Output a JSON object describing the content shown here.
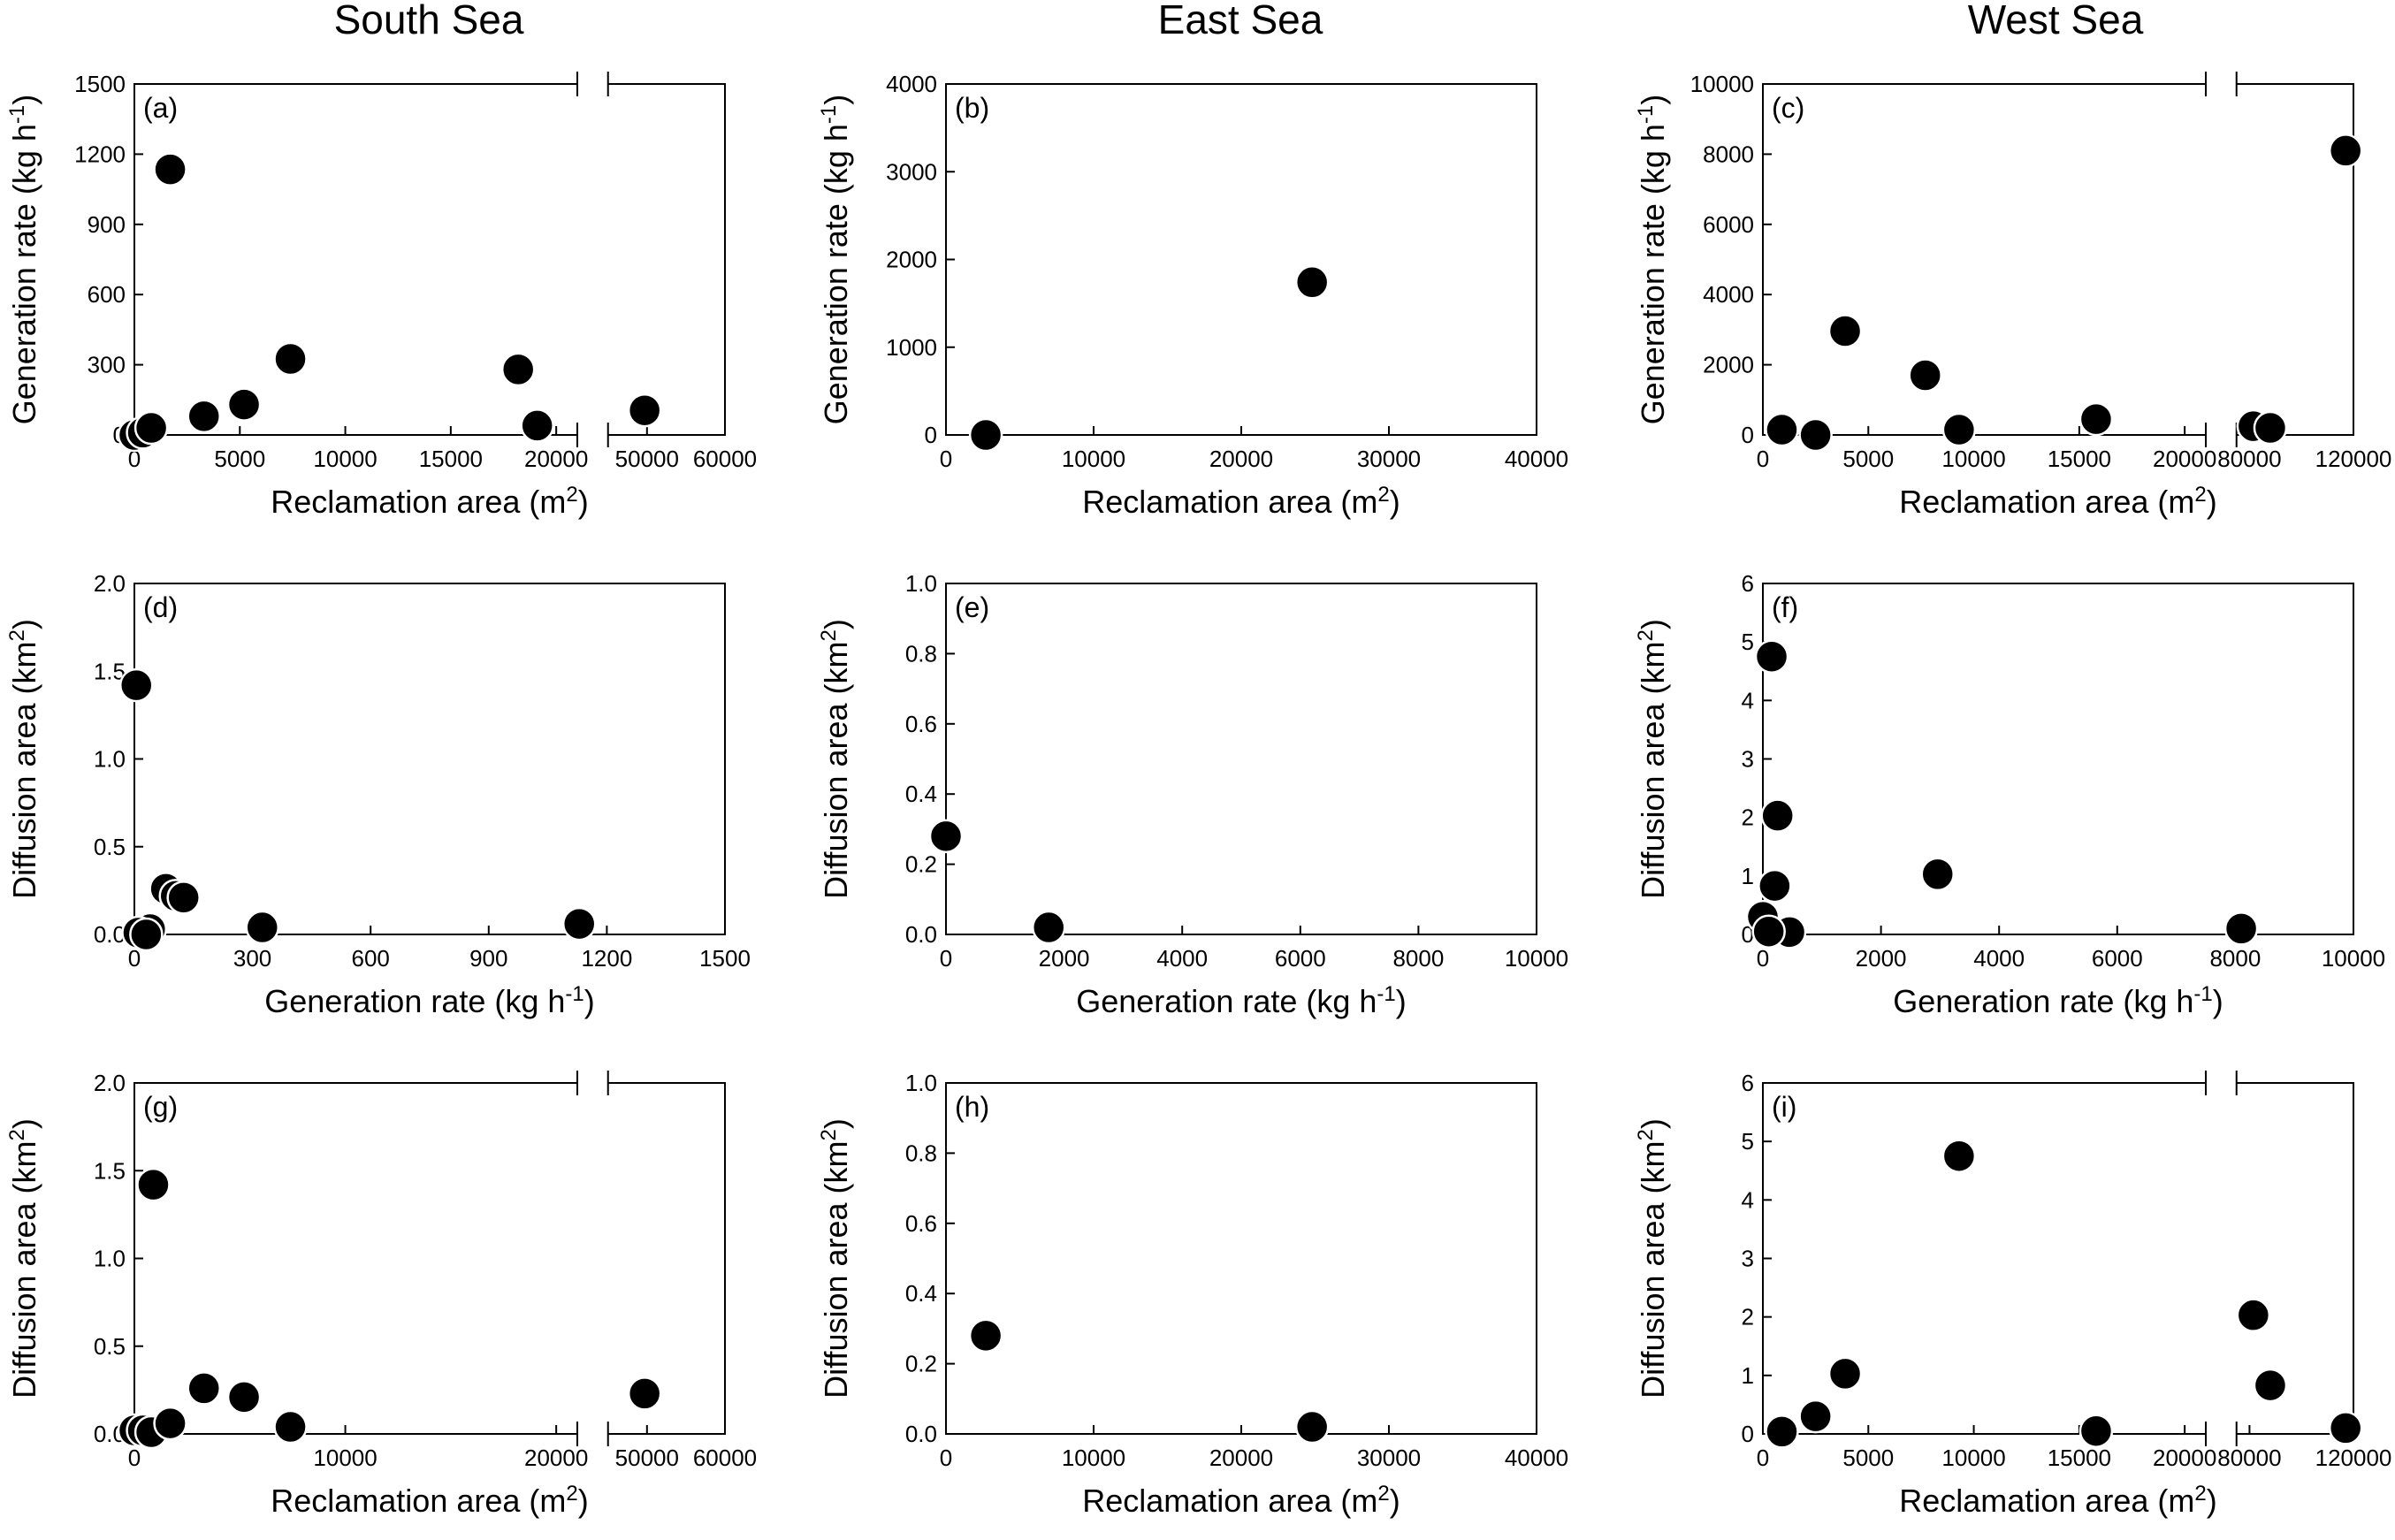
{
  "column_titles": [
    "South Sea",
    "East Sea",
    "West Sea"
  ],
  "chart_data": [
    {
      "panel": "(a)",
      "type": "scatter",
      "xlabel": "Reclamation area (m2)",
      "ylabel": "Generation rate (kg h-1)",
      "xaxis": {
        "broken": true,
        "segments": [
          {
            "range": [
              0,
              21000
            ],
            "ticks": [
              0,
              5000,
              10000,
              15000,
              20000
            ]
          },
          {
            "range": [
              45000,
              60000
            ],
            "ticks": [
              50000,
              60000
            ]
          }
        ]
      },
      "ylim": [
        0,
        1500
      ],
      "yticks": [
        0,
        300,
        600,
        900,
        1200,
        1500
      ],
      "points": [
        [
          0,
          0
        ],
        [
          400,
          10
        ],
        [
          800,
          30
        ],
        [
          1700,
          1135
        ],
        [
          3300,
          80
        ],
        [
          5200,
          130
        ],
        [
          7400,
          325
        ],
        [
          18200,
          280
        ],
        [
          19100,
          40
        ],
        [
          49700,
          105
        ]
      ]
    },
    {
      "panel": "(b)",
      "type": "scatter",
      "xlabel": "Reclamation area (m2)",
      "ylabel": "Generation rate (kg h-1)",
      "xaxis": {
        "broken": false,
        "segments": [
          {
            "range": [
              0,
              40000
            ],
            "ticks": [
              0,
              10000,
              20000,
              30000,
              40000
            ]
          }
        ]
      },
      "ylim": [
        0,
        4000
      ],
      "yticks": [
        0,
        1000,
        2000,
        3000,
        4000
      ],
      "points": [
        [
          2700,
          0
        ],
        [
          24800,
          1740
        ]
      ]
    },
    {
      "panel": "(c)",
      "type": "scatter",
      "xlabel": "Reclamation area (m2)",
      "ylabel": "Generation rate (kg h-1)",
      "xaxis": {
        "broken": true,
        "segments": [
          {
            "range": [
              0,
              21000
            ],
            "ticks": [
              0,
              5000,
              10000,
              15000,
              20000
            ]
          },
          {
            "range": [
              75000,
              120000
            ],
            "ticks": [
              80000,
              120000
            ]
          }
        ]
      },
      "ylim": [
        0,
        10000
      ],
      "yticks": [
        0,
        2000,
        4000,
        6000,
        8000,
        10000
      ],
      "points": [
        [
          900,
          150
        ],
        [
          2500,
          0
        ],
        [
          3900,
          2960
        ],
        [
          7700,
          1700
        ],
        [
          9300,
          150
        ],
        [
          15800,
          450
        ],
        [
          81500,
          250
        ],
        [
          88000,
          200
        ],
        [
          117000,
          8100
        ]
      ]
    },
    {
      "panel": "(d)",
      "type": "scatter",
      "xlabel": "Generation rate (kg h-1)",
      "ylabel": "Diffusion area (km2)",
      "xaxis": {
        "broken": false,
        "segments": [
          {
            "range": [
              0,
              1500
            ],
            "ticks": [
              0,
              300,
              600,
              900,
              1200,
              1500
            ]
          }
        ]
      },
      "ylim": [
        0,
        2.0
      ],
      "yticks": [
        "0.0",
        "0.5",
        "1.0",
        "1.5",
        "2.0"
      ],
      "points": [
        [
          5,
          1.42
        ],
        [
          80,
          0.26
        ],
        [
          105,
          0.22
        ],
        [
          125,
          0.21
        ],
        [
          40,
          0.03
        ],
        [
          10,
          0.01
        ],
        [
          30,
          0.0
        ],
        [
          325,
          0.04
        ],
        [
          1130,
          0.06
        ]
      ]
    },
    {
      "panel": "(e)",
      "type": "scatter",
      "xlabel": "Generation rate (kg h-1)",
      "ylabel": "Diffusion area (km2)",
      "xaxis": {
        "broken": false,
        "segments": [
          {
            "range": [
              0,
              10000
            ],
            "ticks": [
              0,
              2000,
              4000,
              6000,
              8000,
              10000
            ]
          }
        ]
      },
      "ylim": [
        0,
        1.0
      ],
      "yticks": [
        "0.0",
        "0.2",
        "0.4",
        "0.6",
        "0.8",
        "1.0"
      ],
      "points": [
        [
          0,
          0.28
        ],
        [
          1740,
          0.02
        ]
      ]
    },
    {
      "panel": "(f)",
      "type": "scatter",
      "xlabel": "Generation rate (kg h-1)",
      "ylabel": "Diffusion area (km2)",
      "xaxis": {
        "broken": false,
        "segments": [
          {
            "range": [
              0,
              10000
            ],
            "ticks": [
              0,
              2000,
              4000,
              6000,
              8000,
              10000
            ]
          }
        ]
      },
      "ylim": [
        0,
        6
      ],
      "yticks": [
        "0",
        "1",
        "2",
        "3",
        "4",
        "5",
        "6"
      ],
      "points": [
        [
          150,
          4.75
        ],
        [
          250,
          2.03
        ],
        [
          200,
          0.83
        ],
        [
          450,
          0.04
        ],
        [
          2960,
          1.03
        ],
        [
          0,
          0.3
        ],
        [
          100,
          0.05
        ],
        [
          8100,
          0.1
        ]
      ]
    },
    {
      "panel": "(g)",
      "type": "scatter",
      "xlabel": "Reclamation area (m2)",
      "ylabel": "Diffusion area (km2)",
      "xaxis": {
        "broken": true,
        "segments": [
          {
            "range": [
              0,
              21000
            ],
            "ticks": [
              0,
              10000,
              20000
            ]
          },
          {
            "range": [
              45000,
              60000
            ],
            "ticks": [
              50000,
              60000
            ]
          }
        ]
      },
      "ylim": [
        0,
        2.0
      ],
      "yticks": [
        "0.0",
        "0.5",
        "1.0",
        "1.5",
        "2.0"
      ],
      "points": [
        [
          900,
          1.42
        ],
        [
          3300,
          0.26
        ],
        [
          5200,
          0.21
        ],
        [
          7400,
          0.04
        ],
        [
          0,
          0.02
        ],
        [
          400,
          0.02
        ],
        [
          800,
          0.01
        ],
        [
          1700,
          0.06
        ],
        [
          49700,
          0.23
        ]
      ]
    },
    {
      "panel": "(h)",
      "type": "scatter",
      "xlabel": "Reclamation area (m2)",
      "ylabel": "Diffusion area (km2)",
      "xaxis": {
        "broken": false,
        "segments": [
          {
            "range": [
              0,
              40000
            ],
            "ticks": [
              0,
              10000,
              20000,
              30000,
              40000
            ]
          }
        ]
      },
      "ylim": [
        0,
        1.0
      ],
      "yticks": [
        "0.0",
        "0.2",
        "0.4",
        "0.6",
        "0.8",
        "1.0"
      ],
      "points": [
        [
          2700,
          0.28
        ],
        [
          24800,
          0.02
        ]
      ]
    },
    {
      "panel": "(i)",
      "type": "scatter",
      "xlabel": "Reclamation area (m2)",
      "ylabel": "Diffusion area (km2)",
      "xaxis": {
        "broken": true,
        "segments": [
          {
            "range": [
              0,
              21000
            ],
            "ticks": [
              0,
              5000,
              10000,
              15000,
              20000
            ]
          },
          {
            "range": [
              75000,
              120000
            ],
            "ticks": [
              80000,
              120000
            ]
          }
        ]
      },
      "ylim": [
        0,
        6
      ],
      "yticks": [
        "0",
        "1",
        "2",
        "3",
        "4",
        "5",
        "6"
      ],
      "points": [
        [
          900,
          0.04
        ],
        [
          2500,
          0.3
        ],
        [
          3900,
          1.03
        ],
        [
          9300,
          4.75
        ],
        [
          15800,
          0.05
        ],
        [
          81500,
          2.03
        ],
        [
          88000,
          0.83
        ],
        [
          117000,
          0.1
        ]
      ]
    }
  ]
}
